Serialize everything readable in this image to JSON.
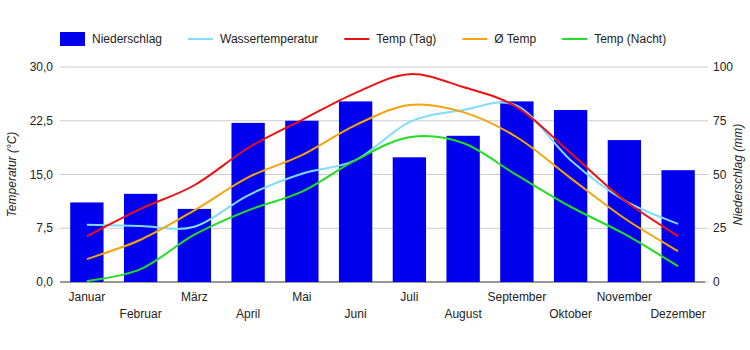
{
  "chart_data": {
    "type": "line",
    "categories": [
      "Januar",
      "Februar",
      "März",
      "April",
      "Mai",
      "Juni",
      "Juli",
      "August",
      "September",
      "Oktober",
      "November",
      "Dezember"
    ],
    "ylabel": "Temperatur (°C)",
    "y2label": "Niederschlag (mm)",
    "ylim": [
      0,
      30
    ],
    "yticks": [
      {
        "value": 0,
        "label": "0,0"
      },
      {
        "value": 7.5,
        "label": "7,5"
      },
      {
        "value": 15,
        "label": "15,0"
      },
      {
        "value": 22.5,
        "label": "22,5"
      },
      {
        "value": 30,
        "label": "30,0"
      }
    ],
    "y2lim": [
      0,
      100
    ],
    "y2ticks": [
      0,
      25,
      50,
      75,
      100
    ],
    "grid": true,
    "legend": "top",
    "series": [
      {
        "name": "Niederschlag",
        "type": "bar",
        "axis": "y2",
        "color": "#0000ee",
        "values": [
          37,
          41,
          34,
          74,
          75,
          84,
          58,
          68,
          84,
          80,
          66,
          52
        ]
      },
      {
        "name": "Wassertemperatur",
        "type": "line",
        "color": "#80dcff",
        "values": [
          8.0,
          7.8,
          7.7,
          12.1,
          15.1,
          17.0,
          22.3,
          24.0,
          24.6,
          17.0,
          11.4,
          8.1
        ]
      },
      {
        "name": "Temp (Tag)",
        "type": "line",
        "color": "#ee1111",
        "values": [
          6.4,
          10.2,
          13.5,
          18.7,
          22.6,
          26.4,
          29.0,
          27.2,
          24.4,
          18.0,
          11.4,
          6.4
        ]
      },
      {
        "name": "Ø Temp",
        "type": "line",
        "color": "#f5a30a",
        "values": [
          3.2,
          5.9,
          10.0,
          14.6,
          17.7,
          21.9,
          24.7,
          23.7,
          20.2,
          14.5,
          8.9,
          4.3
        ]
      },
      {
        "name": "Temp (Nacht)",
        "type": "line",
        "color": "#22dd22",
        "values": [
          0.1,
          1.8,
          6.6,
          10.0,
          12.6,
          17.0,
          20.2,
          19.4,
          14.9,
          10.5,
          6.7,
          2.2
        ]
      }
    ]
  }
}
